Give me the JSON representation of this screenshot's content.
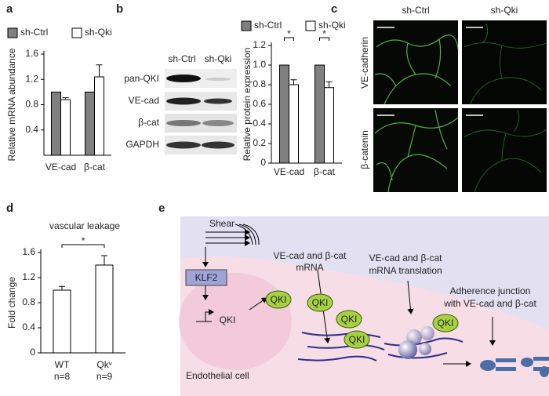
{
  "panels": [
    "a",
    "b",
    "c",
    "d",
    "e"
  ],
  "chart_data": [
    {
      "type": "bar",
      "ylabel": "Relative mRNA abundance",
      "categories": [
        "VE-cad",
        "β-cat"
      ],
      "series": [
        {
          "name": "sh-Ctrl",
          "color": "#808080",
          "values": [
            1.0,
            1.0
          ]
        },
        {
          "name": "sh-Qki",
          "color": "#ffffff",
          "values": [
            0.88,
            1.24
          ],
          "errors": [
            0.03,
            0.19
          ]
        }
      ],
      "ylim": [
        0,
        1.6
      ],
      "yticks": [
        0.4,
        0.8,
        1.2,
        1.6
      ]
    },
    {
      "type": "bar",
      "ylabel": "Relative protein expression",
      "categories": [
        "VE-cad",
        "β-cat"
      ],
      "series": [
        {
          "name": "sh-Ctrl",
          "color": "#808080",
          "values": [
            1.0,
            1.0
          ]
        },
        {
          "name": "sh-Qki",
          "color": "#ffffff",
          "values": [
            0.8,
            0.77
          ],
          "errors": [
            0.05,
            0.06
          ]
        }
      ],
      "significance": [
        "*",
        "*"
      ],
      "ylim": [
        0,
        1.2
      ],
      "yticks": [
        0,
        0.2,
        0.4,
        0.6,
        0.8,
        {
          "value": 1,
          "label": "1.0"
        },
        1.2
      ]
    },
    {
      "type": "bar",
      "title": "vascular leakage",
      "ylabel": "Fold change",
      "categories": [
        "WT",
        "Qkᵛ"
      ],
      "category_notes": [
        "n=8",
        "n=9"
      ],
      "values": [
        1.0,
        1.4
      ],
      "errors": [
        0.06,
        0.15
      ],
      "color": "#ffffff",
      "significance": "*",
      "ylim": [
        0,
        1.6
      ],
      "yticks": [
        0,
        0.4,
        0.8,
        1.2,
        1.6
      ]
    }
  ],
  "blot": {
    "columns": [
      "sh-Ctrl",
      "sh-Qki"
    ],
    "rows": [
      "pan-QKI",
      "VE-cad",
      "β-cat",
      "GAPDH"
    ]
  },
  "micrographs": {
    "columns": [
      "sh-Ctrl",
      "sh-Qki"
    ],
    "rows": [
      "VE-cadherin",
      "β-catenin"
    ]
  },
  "diagram": {
    "shear": "Shear",
    "klf2": "KLF2",
    "gene": "QKI",
    "proteins": [
      "QKI",
      "QKI",
      "QKI",
      "QKI",
      "QKI"
    ],
    "mrna": [
      "VE-cad and β-cat",
      "mRNA"
    ],
    "translation": [
      "VE-cad and β-cat",
      "mRNA translation"
    ],
    "junction": [
      "Adherence junction",
      "with VE-cad and β-cat"
    ],
    "cell": "Endothelial cell"
  }
}
